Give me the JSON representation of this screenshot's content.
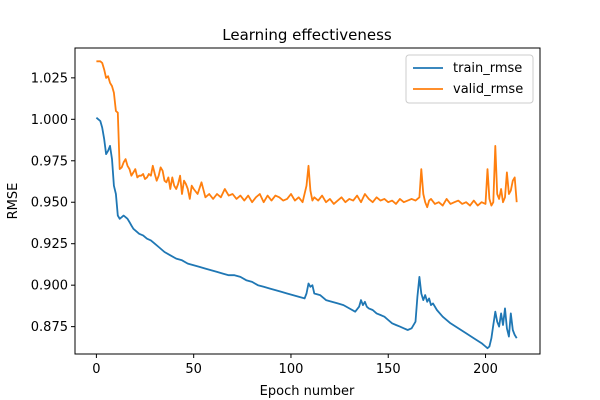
{
  "chart_data": {
    "type": "line",
    "title": "Learning effectiveness",
    "xlabel": "Epoch number",
    "ylabel": "RMSE",
    "xlim": [
      -11,
      228
    ],
    "ylim": [
      0.8585,
      1.043
    ],
    "xticks": [
      0,
      50,
      100,
      150,
      200
    ],
    "xtick_labels": [
      "0",
      "50",
      "100",
      "150",
      "200"
    ],
    "yticks": [
      0.875,
      0.9,
      0.925,
      0.95,
      0.975,
      1.0,
      1.025
    ],
    "ytick_labels": [
      "0.875",
      "0.900",
      "0.925",
      "0.950",
      "0.975",
      "1.000",
      "1.025"
    ],
    "grid": false,
    "legend_position": "top-right",
    "series": [
      {
        "name": "train_rmse",
        "color": "#1f77b4",
        "x": [
          0,
          1,
          2,
          3,
          4,
          5,
          6,
          7,
          8,
          9,
          10,
          11,
          12,
          13,
          14,
          15,
          16,
          17,
          18,
          19,
          20,
          22,
          24,
          26,
          28,
          30,
          32,
          35,
          38,
          41,
          44,
          47,
          50,
          53,
          56,
          59,
          62,
          65,
          68,
          71,
          74,
          77,
          80,
          83,
          86,
          89,
          92,
          95,
          98,
          101,
          104,
          107,
          108,
          109,
          110,
          111,
          112,
          115,
          118,
          121,
          124,
          127,
          130,
          133,
          135,
          136,
          137,
          138,
          139,
          140,
          142,
          144,
          146,
          148,
          150,
          152,
          154,
          156,
          158,
          160,
          162,
          164,
          165,
          166,
          167,
          168,
          169,
          170,
          171,
          172,
          173,
          175,
          178,
          182,
          186,
          190,
          194,
          198,
          200,
          201,
          202,
          203,
          204,
          205,
          206,
          207,
          208,
          209,
          210,
          211,
          212,
          213,
          214,
          215,
          216
        ],
        "values": [
          1.001,
          1.0,
          0.999,
          0.995,
          0.988,
          0.979,
          0.981,
          0.984,
          0.976,
          0.96,
          0.955,
          0.942,
          0.94,
          0.941,
          0.942,
          0.941,
          0.94,
          0.938,
          0.936,
          0.934,
          0.933,
          0.931,
          0.93,
          0.928,
          0.927,
          0.925,
          0.923,
          0.92,
          0.918,
          0.916,
          0.915,
          0.913,
          0.912,
          0.911,
          0.91,
          0.909,
          0.908,
          0.907,
          0.906,
          0.906,
          0.905,
          0.903,
          0.902,
          0.9,
          0.899,
          0.898,
          0.897,
          0.896,
          0.895,
          0.894,
          0.893,
          0.892,
          0.895,
          0.901,
          0.899,
          0.9,
          0.895,
          0.894,
          0.891,
          0.89,
          0.889,
          0.888,
          0.886,
          0.884,
          0.887,
          0.891,
          0.888,
          0.89,
          0.887,
          0.886,
          0.885,
          0.883,
          0.882,
          0.881,
          0.879,
          0.877,
          0.876,
          0.875,
          0.874,
          0.873,
          0.874,
          0.878,
          0.893,
          0.905,
          0.895,
          0.891,
          0.894,
          0.89,
          0.892,
          0.888,
          0.889,
          0.885,
          0.881,
          0.877,
          0.874,
          0.871,
          0.868,
          0.865,
          0.863,
          0.862,
          0.863,
          0.868,
          0.876,
          0.884,
          0.878,
          0.875,
          0.883,
          0.876,
          0.886,
          0.874,
          0.869,
          0.883,
          0.873,
          0.87,
          0.868
        ]
      },
      {
        "name": "valid_rmse",
        "color": "#ff7f0e",
        "x": [
          0,
          1,
          2,
          3,
          4,
          5,
          6,
          7,
          8,
          9,
          10,
          11,
          12,
          13,
          14,
          15,
          16,
          17,
          18,
          19,
          20,
          21,
          22,
          23,
          24,
          25,
          26,
          27,
          28,
          29,
          30,
          31,
          32,
          33,
          34,
          35,
          36,
          37,
          38,
          39,
          40,
          41,
          42,
          43,
          44,
          45,
          46,
          47,
          48,
          49,
          50,
          52,
          54,
          56,
          58,
          60,
          62,
          64,
          66,
          68,
          70,
          72,
          74,
          76,
          78,
          80,
          82,
          84,
          86,
          88,
          90,
          92,
          94,
          96,
          98,
          100,
          102,
          104,
          106,
          108,
          109,
          110,
          111,
          112,
          114,
          116,
          118,
          120,
          122,
          124,
          126,
          128,
          130,
          132,
          134,
          136,
          138,
          140,
          142,
          144,
          146,
          148,
          150,
          152,
          154,
          156,
          158,
          160,
          162,
          164,
          166,
          167,
          168,
          169,
          170,
          171,
          172,
          174,
          176,
          178,
          180,
          182,
          184,
          186,
          188,
          190,
          192,
          194,
          196,
          198,
          200,
          201,
          202,
          203,
          204,
          205,
          206,
          207,
          208,
          209,
          210,
          211,
          212,
          213,
          214,
          215,
          216
        ],
        "values": [
          1.035,
          1.035,
          1.035,
          1.034,
          1.03,
          1.025,
          1.026,
          1.022,
          1.02,
          1.016,
          1.005,
          1.004,
          0.97,
          0.971,
          0.974,
          0.976,
          0.972,
          0.97,
          0.966,
          0.968,
          0.97,
          0.965,
          0.966,
          0.966,
          0.967,
          0.964,
          0.965,
          0.967,
          0.966,
          0.972,
          0.967,
          0.963,
          0.966,
          0.971,
          0.969,
          0.963,
          0.962,
          0.965,
          0.958,
          0.965,
          0.96,
          0.958,
          0.961,
          0.966,
          0.955,
          0.963,
          0.961,
          0.958,
          0.952,
          0.96,
          0.958,
          0.955,
          0.962,
          0.953,
          0.955,
          0.952,
          0.955,
          0.953,
          0.958,
          0.954,
          0.955,
          0.952,
          0.954,
          0.951,
          0.954,
          0.95,
          0.953,
          0.955,
          0.95,
          0.954,
          0.951,
          0.954,
          0.953,
          0.951,
          0.952,
          0.955,
          0.951,
          0.953,
          0.95,
          0.96,
          0.972,
          0.957,
          0.951,
          0.953,
          0.951,
          0.954,
          0.95,
          0.952,
          0.949,
          0.951,
          0.953,
          0.95,
          0.952,
          0.951,
          0.954,
          0.95,
          0.955,
          0.952,
          0.95,
          0.953,
          0.951,
          0.952,
          0.95,
          0.951,
          0.949,
          0.952,
          0.95,
          0.951,
          0.952,
          0.951,
          0.953,
          0.97,
          0.955,
          0.95,
          0.947,
          0.951,
          0.952,
          0.949,
          0.95,
          0.948,
          0.952,
          0.949,
          0.95,
          0.951,
          0.949,
          0.95,
          0.948,
          0.951,
          0.948,
          0.95,
          0.949,
          0.97,
          0.952,
          0.948,
          0.95,
          0.984,
          0.955,
          0.952,
          0.958,
          0.95,
          0.953,
          0.968,
          0.955,
          0.957,
          0.963,
          0.965,
          0.95
        ]
      }
    ]
  }
}
